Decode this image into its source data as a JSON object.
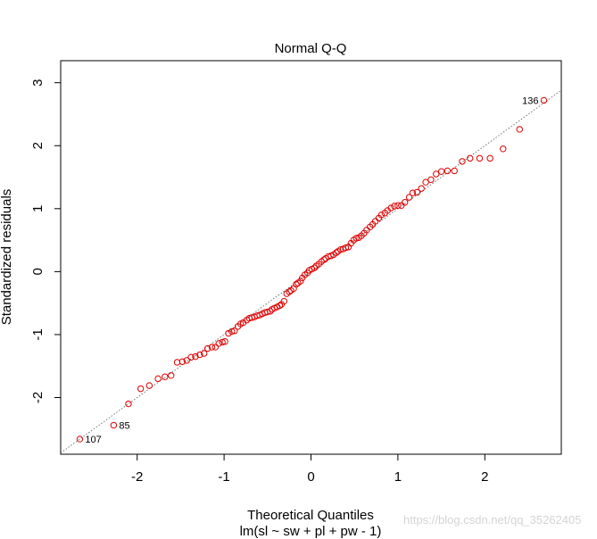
{
  "chart_data": {
    "type": "scatter",
    "title": "Normal Q-Q",
    "xlabel": "Theoretical Quantiles",
    "xlabel2": "lm(sl ~ sw + pl + pw - 1)",
    "ylabel": "Standardized residuals",
    "xlim": [
      -2.88,
      2.88
    ],
    "ylim": [
      -2.9,
      3.35
    ],
    "x_ticks": [
      -2,
      -1,
      0,
      1,
      2
    ],
    "y_ticks": [
      -2,
      -1,
      0,
      1,
      2,
      3
    ],
    "grid": false,
    "point_color": "#e00000",
    "ref_line": {
      "slope": 1.0,
      "intercept": 0.0,
      "style": "dotted",
      "color": "#555555"
    },
    "labels": [
      {
        "text": "136",
        "x": 2.68,
        "y": 2.72
      },
      {
        "text": "85",
        "x": -2.27,
        "y": -2.44
      },
      {
        "text": "107",
        "x": -2.66,
        "y": -2.66
      }
    ],
    "points": [
      {
        "x": -2.66,
        "y": -2.66
      },
      {
        "x": -2.27,
        "y": -2.44
      },
      {
        "x": -2.1,
        "y": -2.1
      },
      {
        "x": -1.96,
        "y": -1.86
      },
      {
        "x": -1.86,
        "y": -1.81
      },
      {
        "x": -1.76,
        "y": -1.7
      },
      {
        "x": -1.68,
        "y": -1.67
      },
      {
        "x": -1.61,
        "y": -1.65
      },
      {
        "x": -1.54,
        "y": -1.44
      },
      {
        "x": -1.48,
        "y": -1.43
      },
      {
        "x": -1.43,
        "y": -1.41
      },
      {
        "x": -1.38,
        "y": -1.36
      },
      {
        "x": -1.33,
        "y": -1.35
      },
      {
        "x": -1.28,
        "y": -1.32
      },
      {
        "x": -1.23,
        "y": -1.3
      },
      {
        "x": -1.19,
        "y": -1.22
      },
      {
        "x": -1.14,
        "y": -1.2
      },
      {
        "x": -1.1,
        "y": -1.2
      },
      {
        "x": -1.06,
        "y": -1.14
      },
      {
        "x": -1.02,
        "y": -1.12
      },
      {
        "x": -0.99,
        "y": -1.11
      },
      {
        "x": -0.95,
        "y": -0.98
      },
      {
        "x": -0.91,
        "y": -0.95
      },
      {
        "x": -0.88,
        "y": -0.94
      },
      {
        "x": -0.84,
        "y": -0.87
      },
      {
        "x": -0.81,
        "y": -0.83
      },
      {
        "x": -0.78,
        "y": -0.81
      },
      {
        "x": -0.74,
        "y": -0.77
      },
      {
        "x": -0.71,
        "y": -0.74
      },
      {
        "x": -0.68,
        "y": -0.73
      },
      {
        "x": -0.65,
        "y": -0.72
      },
      {
        "x": -0.62,
        "y": -0.7
      },
      {
        "x": -0.59,
        "y": -0.69
      },
      {
        "x": -0.56,
        "y": -0.67
      },
      {
        "x": -0.53,
        "y": -0.65
      },
      {
        "x": -0.5,
        "y": -0.64
      },
      {
        "x": -0.47,
        "y": -0.63
      },
      {
        "x": -0.45,
        "y": -0.6
      },
      {
        "x": -0.42,
        "y": -0.58
      },
      {
        "x": -0.39,
        "y": -0.56
      },
      {
        "x": -0.36,
        "y": -0.54
      },
      {
        "x": -0.34,
        "y": -0.52
      },
      {
        "x": -0.31,
        "y": -0.47
      },
      {
        "x": -0.28,
        "y": -0.35
      },
      {
        "x": -0.25,
        "y": -0.32
      },
      {
        "x": -0.23,
        "y": -0.3
      },
      {
        "x": -0.2,
        "y": -0.27
      },
      {
        "x": -0.17,
        "y": -0.2
      },
      {
        "x": -0.15,
        "y": -0.18
      },
      {
        "x": -0.12,
        "y": -0.15
      },
      {
        "x": -0.1,
        "y": -0.1
      },
      {
        "x": -0.07,
        "y": -0.05
      },
      {
        "x": -0.04,
        "y": -0.02
      },
      {
        "x": -0.02,
        "y": 0.02
      },
      {
        "x": 0.01,
        "y": 0.04
      },
      {
        "x": 0.04,
        "y": 0.06
      },
      {
        "x": 0.06,
        "y": 0.09
      },
      {
        "x": 0.09,
        "y": 0.12
      },
      {
        "x": 0.12,
        "y": 0.16
      },
      {
        "x": 0.15,
        "y": 0.19
      },
      {
        "x": 0.17,
        "y": 0.21
      },
      {
        "x": 0.2,
        "y": 0.24
      },
      {
        "x": 0.23,
        "y": 0.25
      },
      {
        "x": 0.26,
        "y": 0.27
      },
      {
        "x": 0.29,
        "y": 0.3
      },
      {
        "x": 0.31,
        "y": 0.32
      },
      {
        "x": 0.34,
        "y": 0.35
      },
      {
        "x": 0.37,
        "y": 0.36
      },
      {
        "x": 0.4,
        "y": 0.38
      },
      {
        "x": 0.43,
        "y": 0.39
      },
      {
        "x": 0.46,
        "y": 0.45
      },
      {
        "x": 0.49,
        "y": 0.5
      },
      {
        "x": 0.52,
        "y": 0.53
      },
      {
        "x": 0.55,
        "y": 0.54
      },
      {
        "x": 0.58,
        "y": 0.57
      },
      {
        "x": 0.61,
        "y": 0.61
      },
      {
        "x": 0.64,
        "y": 0.66
      },
      {
        "x": 0.68,
        "y": 0.71
      },
      {
        "x": 0.71,
        "y": 0.75
      },
      {
        "x": 0.74,
        "y": 0.8
      },
      {
        "x": 0.78,
        "y": 0.85
      },
      {
        "x": 0.81,
        "y": 0.9
      },
      {
        "x": 0.85,
        "y": 0.93
      },
      {
        "x": 0.88,
        "y": 0.97
      },
      {
        "x": 0.92,
        "y": 1.01
      },
      {
        "x": 0.96,
        "y": 1.04
      },
      {
        "x": 1.0,
        "y": 1.05
      },
      {
        "x": 1.04,
        "y": 1.05
      },
      {
        "x": 1.08,
        "y": 1.1
      },
      {
        "x": 1.13,
        "y": 1.18
      },
      {
        "x": 1.17,
        "y": 1.25
      },
      {
        "x": 1.22,
        "y": 1.26
      },
      {
        "x": 1.27,
        "y": 1.32
      },
      {
        "x": 1.32,
        "y": 1.42
      },
      {
        "x": 1.38,
        "y": 1.46
      },
      {
        "x": 1.44,
        "y": 1.55
      },
      {
        "x": 1.5,
        "y": 1.59
      },
      {
        "x": 1.57,
        "y": 1.6
      },
      {
        "x": 1.65,
        "y": 1.6
      },
      {
        "x": 1.74,
        "y": 1.75
      },
      {
        "x": 1.83,
        "y": 1.8
      },
      {
        "x": 1.94,
        "y": 1.8
      },
      {
        "x": 2.06,
        "y": 1.8
      },
      {
        "x": 2.21,
        "y": 1.95
      },
      {
        "x": 2.4,
        "y": 2.26
      },
      {
        "x": 2.68,
        "y": 2.72
      }
    ]
  },
  "watermark": "https://blog.csdn.net/qq_35262405"
}
